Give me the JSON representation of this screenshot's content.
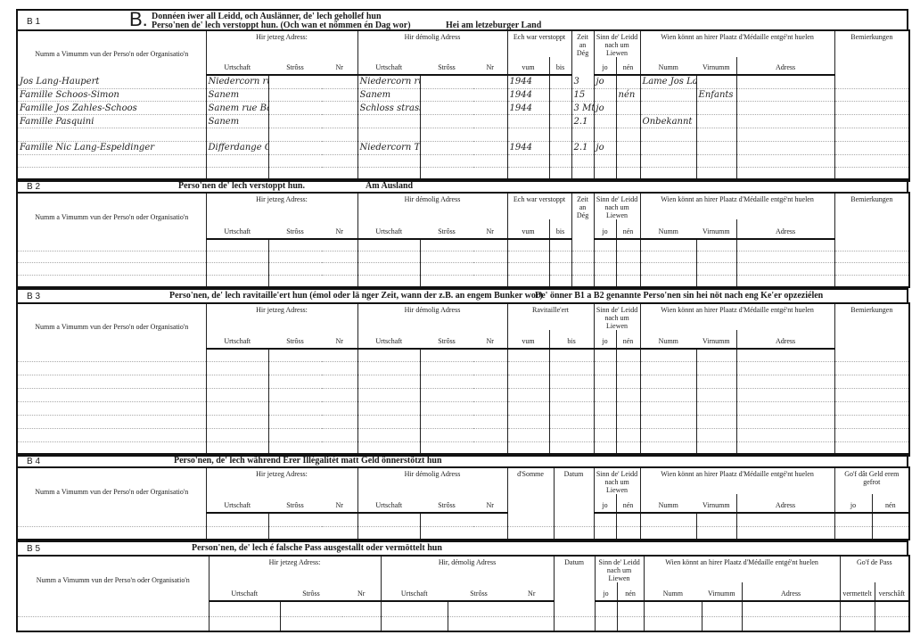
{
  "sections": [
    {
      "id": "B 1",
      "letter": "B.",
      "title_line1": "Donnéen iwer all Leidd, och Auslänner, de' lech gehollef hun",
      "title_line2": "Perso'nen de' lech verstoppt hun. (Och wan et nömmen én Dag wor)",
      "title_extra": "Hei am letzeburger Land",
      "columns": [
        {
          "label": "Numm a Vimumm vun der Perso'n oder Organisatio'n",
          "subs": [
            {
              "key": "name",
              "label": ""
            }
          ]
        },
        {
          "label": "Hir jetzeg Adress:",
          "subs": [
            {
              "key": "j_ort",
              "label": "Urtschaft"
            },
            {
              "key": "j_str",
              "label": "Strôss"
            },
            {
              "key": "j_nr",
              "label": "Nr"
            }
          ]
        },
        {
          "label": "Hir démolig Adress",
          "subs": [
            {
              "key": "d_ort",
              "label": "Urtschaft"
            },
            {
              "key": "d_str",
              "label": "Strôss"
            },
            {
              "key": "d_nr",
              "label": "Nr"
            }
          ]
        },
        {
          "label": "Ech war verstoppt",
          "subs": [
            {
              "key": "vum",
              "label": "vum"
            },
            {
              "key": "bis",
              "label": "bis"
            }
          ]
        },
        {
          "label": "Zeit an Dég",
          "subs": [
            {
              "key": "zeit",
              "label": ""
            }
          ]
        },
        {
          "label": "Sinn de' Leidd nach um Liewen",
          "subs": [
            {
              "key": "jo",
              "label": "jo"
            },
            {
              "key": "nen",
              "label": "nén"
            }
          ]
        },
        {
          "label": "Wien könnt an hirer Plaatz d'Médaille entgé'nt huelen",
          "subs": [
            {
              "key": "m_numm",
              "label": "Numm"
            },
            {
              "key": "m_vir",
              "label": "Virnumm"
            },
            {
              "key": "m_adr",
              "label": "Adress"
            }
          ]
        },
        {
          "label": "Bemierkungen",
          "subs": [
            {
              "key": "bem",
              "label": ""
            }
          ]
        }
      ],
      "rows": [
        {
          "name": "Jos Lang-Haupert",
          "j_ort": "Niedercorn rue du mi",
          "d_ort": "Niedercorn rue du mi",
          "vum": "1944",
          "zeit": "3",
          "jo": "jo",
          "m_numm": "Lame Jos Lang-Haupert"
        },
        {
          "name": "Famille Schoos-Simon",
          "j_ort": "Sanem",
          "d_ort": "Sanem",
          "vum": "1944",
          "zeit": "15",
          "nen": "nén",
          "m_vir": "Enfants"
        },
        {
          "name": "Famille Jos Zahles-Schoos",
          "j_ort": "Sanem rue Bascharage",
          "d_ort": "Schloss strasse",
          "vum": "1944",
          "zeit": "3 Mt",
          "jo": "jo"
        },
        {
          "name": "Famille Pasquini",
          "j_ort": "Sanem",
          "zeit": "2.1",
          "m_numm": "Onbekannt"
        },
        {},
        {
          "name": "Famille Nic Lang-Espeldinger",
          "j_ort": "Differdange Grand-rue",
          "d_ort": "Niedercorn Theis strasse",
          "vum": "1944",
          "zeit": "2.1",
          "jo": "jo"
        },
        {},
        {}
      ]
    },
    {
      "id": "B 2",
      "title_line1": "Perso'nen de' lech verstoppt hun.",
      "title_extra": "Am Ausland",
      "columns": [
        {
          "label": "Numm a Vimumm vun der Perso'n oder Organisatio'n",
          "subs": [
            {
              "key": "name",
              "label": ""
            }
          ]
        },
        {
          "label": "Hir jetzeg Adress:",
          "subs": [
            {
              "key": "j_ort",
              "label": "Urtschaft"
            },
            {
              "key": "j_str",
              "label": "Strôss"
            },
            {
              "key": "j_nr",
              "label": "Nr"
            }
          ]
        },
        {
          "label": "Hir démolig Adress",
          "subs": [
            {
              "key": "d_ort",
              "label": "Urtschaft"
            },
            {
              "key": "d_str",
              "label": "Strôss"
            },
            {
              "key": "d_nr",
              "label": "Nr"
            }
          ]
        },
        {
          "label": "Ech war verstoppt",
          "subs": [
            {
              "key": "vum",
              "label": "vum"
            },
            {
              "key": "bis",
              "label": "bis"
            }
          ]
        },
        {
          "label": "Zeit an Dég",
          "subs": [
            {
              "key": "zeit",
              "label": ""
            }
          ]
        },
        {
          "label": "Sinn de' Leidd nach um Liewen",
          "subs": [
            {
              "key": "jo",
              "label": "jo"
            },
            {
              "key": "nen",
              "label": "nén"
            }
          ]
        },
        {
          "label": "Wien könnt an hirer Plaatz d'Médaille entgé'nt huelen",
          "subs": [
            {
              "key": "m_numm",
              "label": "Numm"
            },
            {
              "key": "m_vir",
              "label": "Virnumm"
            },
            {
              "key": "m_adr",
              "label": "Adress"
            }
          ]
        },
        {
          "label": "Bemierkungen",
          "subs": [
            {
              "key": "bem",
              "label": ""
            }
          ]
        }
      ],
      "rows": [
        {},
        {},
        {},
        {}
      ]
    },
    {
      "id": "B 3",
      "title_line1": "Perso'nen, de' lech ravitaille'ert hun (émol oder lä nger Zeit, wann der z.B. an engem Bunker wor)",
      "title_extra": "De' önner B1 a B2 genannte Perso'nen sin hei nöt nach eng Ke'er opzeziélen",
      "columns": [
        {
          "label": "Numm a Vimumm vun der Perso'n oder Organisatio'n",
          "subs": [
            {
              "key": "name",
              "label": ""
            }
          ]
        },
        {
          "label": "Hir jetzeg Adress:",
          "subs": [
            {
              "key": "j_ort",
              "label": "Urtschaft"
            },
            {
              "key": "j_str",
              "label": "Strôss"
            },
            {
              "key": "j_nr",
              "label": "Nr"
            }
          ]
        },
        {
          "label": "Hir démolig Adress",
          "subs": [
            {
              "key": "d_ort",
              "label": "Urtschaft"
            },
            {
              "key": "d_str",
              "label": "Strôss"
            },
            {
              "key": "d_nr",
              "label": "Nr"
            }
          ]
        },
        {
          "label": "Ravitaille'ert",
          "subs": [
            {
              "key": "vum",
              "label": "vum"
            },
            {
              "key": "bis",
              "label": "bis"
            }
          ]
        },
        {
          "label": "Sinn de' Leidd nach um Liewen",
          "subs": [
            {
              "key": "jo",
              "label": "jo"
            },
            {
              "key": "nen",
              "label": "nén"
            }
          ]
        },
        {
          "label": "Wien könnt an hirer Plaatz d'Médaille entgé'nt huelen",
          "subs": [
            {
              "key": "m_numm",
              "label": "Numm"
            },
            {
              "key": "m_vir",
              "label": "Virnumm"
            },
            {
              "key": "m_adr",
              "label": "Adress"
            }
          ]
        },
        {
          "label": "Bemierkungen",
          "subs": [
            {
              "key": "bem",
              "label": ""
            }
          ]
        }
      ],
      "rows": [
        {},
        {},
        {},
        {},
        {},
        {},
        {},
        {}
      ]
    },
    {
      "id": "B 4",
      "title_line1": "Perso'nen, de' lech während Erer Illégalitét matt Geld önnerstötzt hun",
      "columns": [
        {
          "label": "Numm a Vimumm vun der Perso'n oder Organisatio'n",
          "subs": [
            {
              "key": "name",
              "label": ""
            }
          ]
        },
        {
          "label": "Hir jetzeg Adress:",
          "subs": [
            {
              "key": "j_ort",
              "label": "Urtschaft"
            },
            {
              "key": "j_str",
              "label": "Strôss"
            },
            {
              "key": "j_nr",
              "label": "Nr"
            }
          ]
        },
        {
          "label": "Hir démolig Adress",
          "subs": [
            {
              "key": "d_ort",
              "label": "Urtschaft"
            },
            {
              "key": "d_str",
              "label": "Strôss"
            },
            {
              "key": "d_nr",
              "label": "Nr"
            }
          ]
        },
        {
          "label": "d'Somme",
          "subs": [
            {
              "key": "somme",
              "label": ""
            }
          ]
        },
        {
          "label": "Datum",
          "subs": [
            {
              "key": "datum",
              "label": ""
            }
          ]
        },
        {
          "label": "Sinn de' Leidd nach um Liewen",
          "subs": [
            {
              "key": "jo",
              "label": "jo"
            },
            {
              "key": "nen",
              "label": "nén"
            }
          ]
        },
        {
          "label": "Wien könnt an hirer Plaatz d'Médaille entgé'nt huelen",
          "subs": [
            {
              "key": "m_numm",
              "label": "Numm"
            },
            {
              "key": "m_vir",
              "label": "Virnumm"
            },
            {
              "key": "m_adr",
              "label": "Adress"
            }
          ]
        },
        {
          "label": "Go'f dât Geld erem gefrot",
          "subs": [
            {
              "key": "g_jo",
              "label": "jo"
            },
            {
              "key": "g_nen",
              "label": "nén"
            }
          ]
        }
      ],
      "rows": [
        {},
        {}
      ]
    },
    {
      "id": "B 5",
      "title_line1": "Person'nen, de' lech é falsche Pass ausgestallt oder  vermöttelt hun",
      "columns": [
        {
          "label": "Numm a Vimumm vun der Perso'n oder Organisatio'n",
          "subs": [
            {
              "key": "name",
              "label": ""
            }
          ]
        },
        {
          "label": "Hir jetzeg Adress:",
          "subs": [
            {
              "key": "j_ort",
              "label": "Urtschaft"
            },
            {
              "key": "j_str",
              "label": "Strôss"
            },
            {
              "key": "j_nr",
              "label": "Nr"
            }
          ]
        },
        {
          "label": "Hir, démolig Adress",
          "subs": [
            {
              "key": "d_ort",
              "label": "Urtschaft"
            },
            {
              "key": "d_str",
              "label": "Strôss"
            },
            {
              "key": "d_nr",
              "label": "Nr"
            }
          ]
        },
        {
          "label": "Datum",
          "subs": [
            {
              "key": "datum",
              "label": ""
            }
          ]
        },
        {
          "label": "Sinn de' Leidd nach um Liewen",
          "subs": [
            {
              "key": "jo",
              "label": "jo"
            },
            {
              "key": "nen",
              "label": "nén"
            }
          ]
        },
        {
          "label": "Wien könnt an hirer Plaatz d'Médaille entgé'nt huelen",
          "subs": [
            {
              "key": "m_numm",
              "label": "Numm"
            },
            {
              "key": "m_vir",
              "label": "Virnumm"
            },
            {
              "key": "m_adr",
              "label": "Adress"
            }
          ]
        },
        {
          "label": "Go'f de Pass",
          "subs": [
            {
              "key": "p_verm",
              "label": "vermettelt"
            },
            {
              "key": "p_versch",
              "label": "verschâft"
            }
          ]
        }
      ],
      "rows": [
        {},
        {}
      ]
    }
  ]
}
